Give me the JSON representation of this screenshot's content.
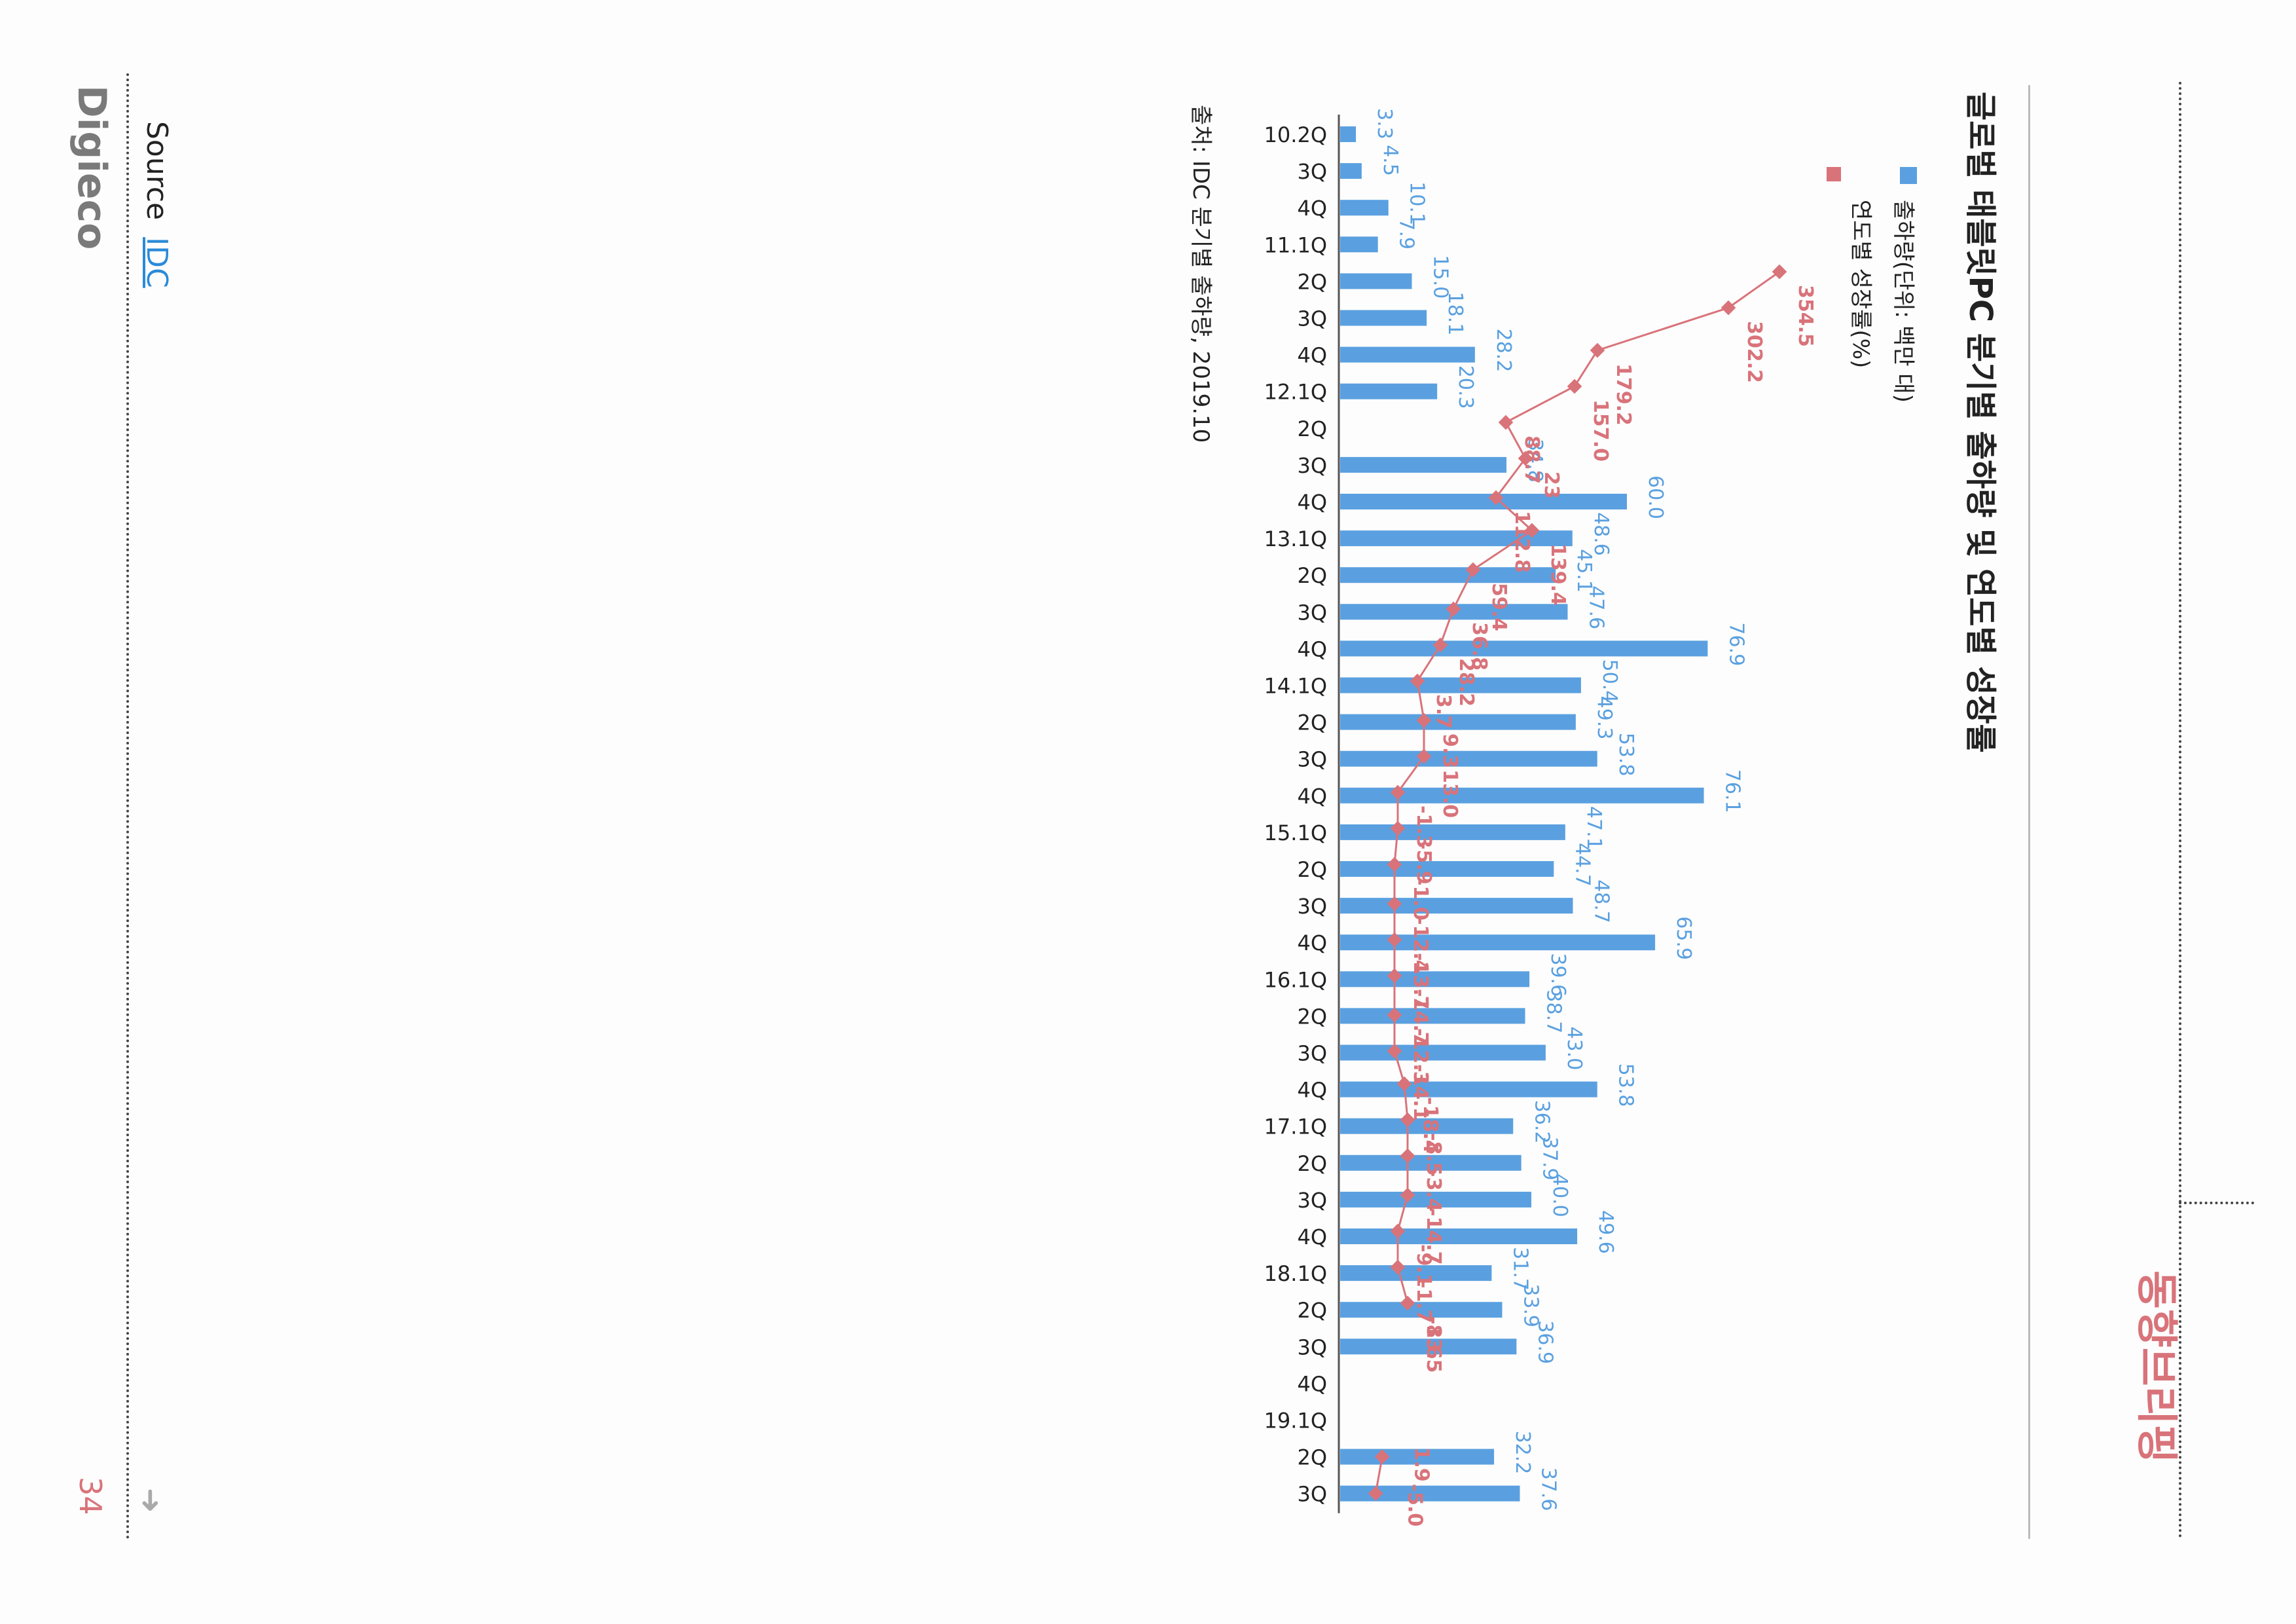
{
  "page": {
    "section_title": "동향브리핑",
    "brand": "Digieco",
    "source_label": "Source",
    "source_link": "IDC",
    "page_number": "34"
  },
  "chart_data": {
    "type": "bar",
    "title": "글로벌 태블릿PC 분기별 출하량 및 연도별 성장률",
    "legend": {
      "bar_label": "출하량(단위: 백만 대)",
      "line_label": "연도별 성장률(%)"
    },
    "source_note": "출처: IDC 분기별 출하량, 2019.10",
    "categories": [
      "10.2Q",
      "3Q",
      "4Q",
      "11.1Q",
      "2Q",
      "3Q",
      "4Q",
      "12.1Q",
      "2Q",
      "3Q",
      "4Q",
      "13.1Q",
      "2Q",
      "3Q",
      "4Q",
      "14.1Q",
      "2Q",
      "3Q",
      "4Q",
      "15.1Q",
      "2Q",
      "3Q",
      "4Q",
      "16.1Q",
      "2Q",
      "3Q",
      "4Q",
      "17.1Q",
      "2Q",
      "3Q",
      "4Q",
      "18.1Q",
      "2Q",
      "3Q",
      "4Q",
      "19.1Q",
      "2Q",
      "3Q"
    ],
    "series": [
      {
        "name": "출하량(단위: 백만 대)",
        "type": "bar",
        "color": "#5aa0e0",
        "values": [
          3.3,
          4.5,
          10.1,
          7.9,
          15.0,
          18.1,
          28.2,
          20.3,
          null,
          34.8,
          60.0,
          48.6,
          45.1,
          47.6,
          76.9,
          50.4,
          49.3,
          53.8,
          76.1,
          47.1,
          44.7,
          48.7,
          65.9,
          39.6,
          38.7,
          43.0,
          53.8,
          36.2,
          37.9,
          40.0,
          49.6,
          31.7,
          33.9,
          36.9,
          null,
          null,
          32.2,
          37.6
        ]
      },
      {
        "name": "연도별 성장률(%)",
        "type": "line",
        "color": "#d9737a",
        "values": [
          null,
          null,
          null,
          null,
          null,
          null,
          null,
          null,
          null,
          null,
          null,
          null,
          null,
          null,
          null,
          null,
          null,
          null,
          null,
          null,
          null,
          null,
          null,
          null,
          null,
          null,
          null,
          null,
          null,
          null,
          null,
          null,
          null,
          null,
          null,
          null,
          1.9,
          -5.0
        ]
      }
    ],
    "extra_labels": [
      "354.5",
      "302.2",
      "179.2",
      "157.0",
      "88.7",
      "23",
      "112.8",
      "139.4",
      "59.4",
      "36.8",
      "28.2",
      "3.7",
      "9.3",
      "13.0",
      "-1.3",
      "-5.9",
      "-1.0",
      "-12.4",
      "-13.7",
      "-14.7",
      "-12.3",
      "-14.1",
      "-18.4",
      "-8.5",
      "-3.4",
      "-14.7",
      "-9.1",
      "-1.7",
      "-13.5",
      "-8.6"
    ]
  }
}
